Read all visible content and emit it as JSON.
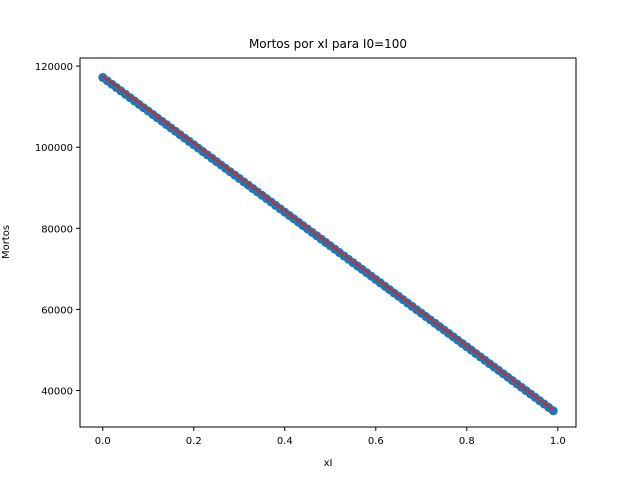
{
  "chart_data": {
    "type": "scatter",
    "title": "Mortos por xI para I0=100",
    "xlabel": "xI",
    "ylabel": "Mortos",
    "xlim": [
      -0.05,
      1.04
    ],
    "ylim": [
      31000,
      122000
    ],
    "x_ticks": [
      0.0,
      0.2,
      0.4,
      0.6,
      0.8,
      1.0
    ],
    "x_tick_labels": [
      "0.0",
      "0.2",
      "0.4",
      "0.6",
      "0.8",
      "1.0"
    ],
    "y_ticks": [
      40000,
      60000,
      80000,
      100000,
      120000
    ],
    "y_tick_labels": [
      "40000",
      "60000",
      "80000",
      "100000",
      "120000"
    ],
    "grid": false,
    "series": [
      {
        "kind": "scatter",
        "color": "#1f77b4",
        "x_start": 0.0,
        "x_end": 0.99,
        "x_step": 0.01,
        "y_start": 117200,
        "y_end": 35000
      },
      {
        "kind": "line",
        "color": "#d62728",
        "x": [
          0.0,
          0.99
        ],
        "y": [
          117600,
          35200
        ]
      }
    ]
  }
}
